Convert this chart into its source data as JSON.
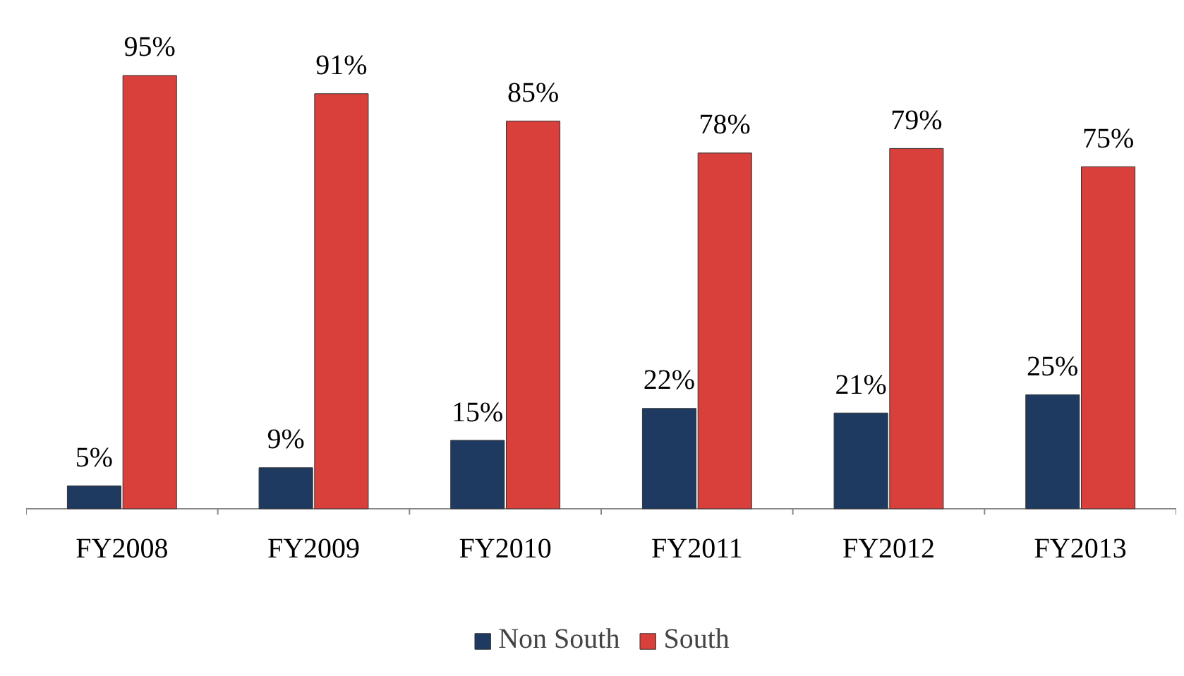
{
  "chart_data": {
    "type": "bar",
    "categories": [
      "FY2008",
      "FY2009",
      "FY2010",
      "FY2011",
      "FY2012",
      "FY2013"
    ],
    "series": [
      {
        "name": "Non South",
        "color": "#1f3a60",
        "values": [
          5,
          9,
          15,
          22,
          21,
          25
        ],
        "value_labels": [
          "5%",
          "9%",
          "15%",
          "22%",
          "21%",
          "25%"
        ]
      },
      {
        "name": "South",
        "color": "#d9403b",
        "values": [
          95,
          91,
          85,
          78,
          79,
          75
        ],
        "value_labels": [
          "95%",
          "91%",
          "85%",
          "78%",
          "79%",
          "75%"
        ]
      }
    ],
    "legend": "bottom"
  }
}
